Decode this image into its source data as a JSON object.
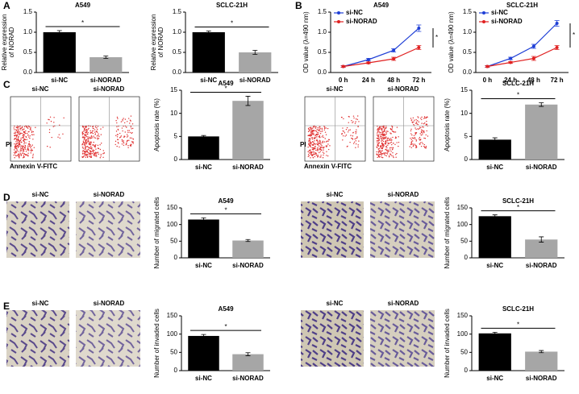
{
  "figure": {
    "panel_labels": [
      "A",
      "B",
      "C",
      "D",
      "E"
    ],
    "image_captions": [
      "si-NC",
      "si-NORAD"
    ],
    "flow_axes": [
      "PI",
      "Annexin V-FITC"
    ]
  },
  "chart_data": [
    {
      "type": "bar",
      "title": "A549",
      "ylabel": [
        "Relative expression",
        "of NORAD"
      ],
      "categories": [
        "si-NC",
        "si-NORAD"
      ],
      "values": [
        1.0,
        0.38
      ],
      "errors": [
        0.04,
        0.03
      ],
      "colors": [
        "#000000",
        "#a6a6a6"
      ],
      "ylim": [
        0,
        1.5
      ],
      "yticks": [
        {
          "value": 0,
          "label": "0.0"
        },
        {
          "value": 0.5,
          "label": "0.5"
        },
        {
          "value": 1,
          "label": "1.0"
        },
        {
          "value": 1.5,
          "label": "1.5"
        }
      ],
      "annotation": "*"
    },
    {
      "type": "bar",
      "title": "SCLC-21H",
      "ylabel": [
        "Relative expression",
        "of NORAD"
      ],
      "categories": [
        "si-NC",
        "si-NORAD"
      ],
      "values": [
        1.0,
        0.5
      ],
      "errors": [
        0.03,
        0.05
      ],
      "colors": [
        "#000000",
        "#a6a6a6"
      ],
      "ylim": [
        0,
        1.5
      ],
      "yticks": [
        {
          "value": 0,
          "label": "0.0"
        },
        {
          "value": 0.5,
          "label": "0.5"
        },
        {
          "value": 1,
          "label": "1.0"
        },
        {
          "value": 1.5,
          "label": "1.5"
        }
      ],
      "annotation": "*"
    },
    {
      "type": "line",
      "title": "A549",
      "ylabel": [
        "OD value (λ=490 nm)"
      ],
      "categories": [
        "0 h",
        "24 h",
        "48 h",
        "72 h"
      ],
      "series": [
        {
          "name": "si-NC",
          "color": "#1f3fd6",
          "values": [
            0.15,
            0.32,
            0.55,
            1.1
          ],
          "errors": [
            0.02,
            0.03,
            0.04,
            0.08
          ]
        },
        {
          "name": "si-NORAD",
          "color": "#e02020",
          "values": [
            0.15,
            0.24,
            0.34,
            0.62
          ],
          "errors": [
            0.02,
            0.02,
            0.04,
            0.05
          ]
        }
      ],
      "ylim": [
        0,
        1.5
      ],
      "yticks": [
        {
          "value": 0,
          "label": "0.0"
        },
        {
          "value": 0.5,
          "label": "0.5"
        },
        {
          "value": 1,
          "label": "1.0"
        },
        {
          "value": 1.5,
          "label": "1.5"
        }
      ],
      "annotation": "*"
    },
    {
      "type": "line",
      "title": "SCLC-21H",
      "ylabel": [
        "OD value (λ=490 nm)"
      ],
      "categories": [
        "0 h",
        "24 h",
        "48 h",
        "72 h"
      ],
      "series": [
        {
          "name": "si-NC",
          "color": "#1f3fd6",
          "values": [
            0.15,
            0.35,
            0.65,
            1.22
          ],
          "errors": [
            0.02,
            0.03,
            0.05,
            0.07
          ]
        },
        {
          "name": "si-NORAD",
          "color": "#e02020",
          "values": [
            0.15,
            0.25,
            0.35,
            0.62
          ],
          "errors": [
            0.02,
            0.02,
            0.05,
            0.05
          ]
        }
      ],
      "ylim": [
        0,
        1.5
      ],
      "yticks": [
        {
          "value": 0,
          "label": "0.0"
        },
        {
          "value": 0.5,
          "label": "0.5"
        },
        {
          "value": 1,
          "label": "1.0"
        },
        {
          "value": 1.5,
          "label": "1.5"
        }
      ],
      "annotation": "*"
    },
    {
      "type": "bar",
      "title": "A549",
      "ylabel": [
        "Apoptosis rate (%)"
      ],
      "categories": [
        "si-NC",
        "si-NORAD"
      ],
      "values": [
        5.0,
        12.7
      ],
      "errors": [
        0.2,
        1.0
      ],
      "colors": [
        "#000000",
        "#a6a6a6"
      ],
      "ylim": [
        0,
        15
      ],
      "yticks": [
        0,
        5,
        10,
        15
      ],
      "annotation": "*"
    },
    {
      "type": "bar",
      "title": "SCLC-21H",
      "ylabel": [
        "Apoptosis rate (%)"
      ],
      "categories": [
        "si-NC",
        "si-NORAD"
      ],
      "values": [
        4.3,
        11.9
      ],
      "errors": [
        0.4,
        0.4
      ],
      "colors": [
        "#000000",
        "#a6a6a6"
      ],
      "ylim": [
        0,
        15
      ],
      "yticks": [
        0,
        5,
        10,
        15
      ],
      "annotation": "*"
    },
    {
      "type": "bar",
      "title": "A549",
      "ylabel": [
        "Number of migrated cells"
      ],
      "categories": [
        "si-NC",
        "si-NORAD"
      ],
      "values": [
        115,
        52
      ],
      "errors": [
        5,
        3
      ],
      "colors": [
        "#000000",
        "#a6a6a6"
      ],
      "ylim": [
        0,
        150
      ],
      "yticks": [
        0,
        50,
        100,
        150
      ],
      "annotation": "*"
    },
    {
      "type": "bar",
      "title": "SCLC-21H",
      "ylabel": [
        "Number of migrated cells"
      ],
      "categories": [
        "si-NC",
        "si-NORAD"
      ],
      "values": [
        125,
        55
      ],
      "errors": [
        4,
        8
      ],
      "colors": [
        "#000000",
        "#a6a6a6"
      ],
      "ylim": [
        0,
        150
      ],
      "yticks": [
        0,
        50,
        100,
        150
      ],
      "annotation": "*"
    },
    {
      "type": "bar",
      "title": "A549",
      "ylabel": [
        "Number of invaded cells"
      ],
      "categories": [
        "si-NC",
        "si-NORAD"
      ],
      "values": [
        95,
        45
      ],
      "errors": [
        4,
        4
      ],
      "colors": [
        "#000000",
        "#a6a6a6"
      ],
      "ylim": [
        0,
        150
      ],
      "yticks": [
        0,
        50,
        100,
        150
      ],
      "annotation": "*"
    },
    {
      "type": "bar",
      "title": "SCLC-21H",
      "ylabel": [
        "Number of invaded cells"
      ],
      "categories": [
        "si-NC",
        "si-NORAD"
      ],
      "values": [
        102,
        52
      ],
      "errors": [
        3,
        3
      ],
      "colors": [
        "#000000",
        "#a6a6a6"
      ],
      "ylim": [
        0,
        150
      ],
      "yticks": [
        0,
        50,
        100,
        150
      ],
      "annotation": "*"
    }
  ]
}
